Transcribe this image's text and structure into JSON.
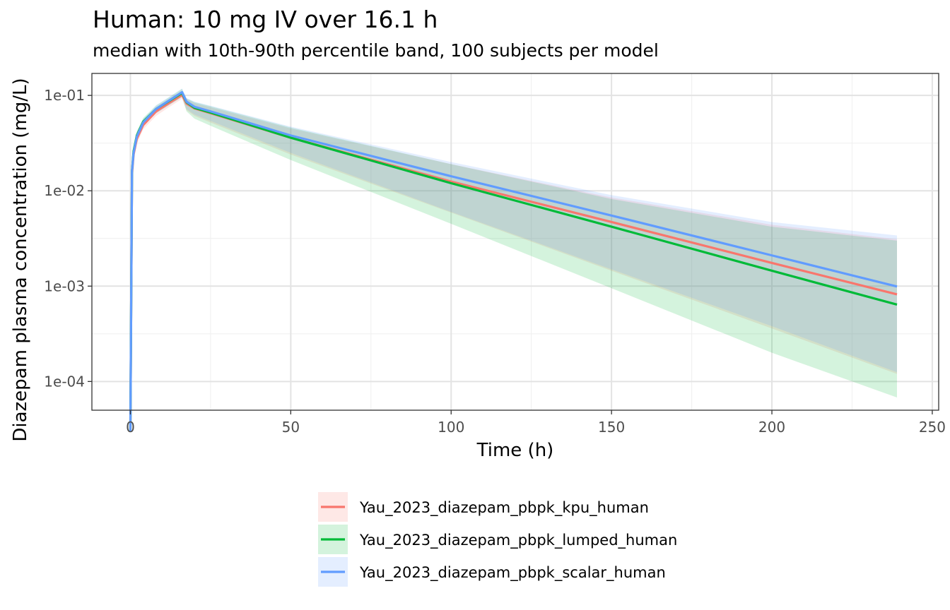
{
  "chart_data": {
    "type": "line",
    "title": "Human: 10 mg IV over 16.1 h",
    "subtitle": "median with 10th-90th percentile band, 100 subjects per model",
    "xlabel": "Time (h)",
    "ylabel": "Diazepam plasma concentration (mg/L)",
    "xlim": [
      -12,
      252
    ],
    "ylim": [
      5e-05,
      0.17
    ],
    "y_scale": "log10",
    "x_ticks": [
      0,
      50,
      100,
      150,
      200,
      250
    ],
    "x_tick_labels": [
      "0",
      "50",
      "100",
      "150",
      "200",
      "250"
    ],
    "y_ticks": [
      0.0001,
      0.001,
      0.01,
      0.1
    ],
    "y_tick_labels": [
      "1e-04",
      "1e-03",
      "1e-02",
      "1e-01"
    ],
    "grid": true,
    "legend_position": "bottom",
    "series": [
      {
        "name": "Yau_2023_diazepam_pbpk_kpu_human",
        "color": "#F8766D",
        "x": [
          0,
          0.5,
          1,
          2,
          4,
          8,
          12,
          16.1,
          17.5,
          20,
          25,
          50,
          100,
          150,
          200,
          239
        ],
        "median": [
          3e-05,
          0.015,
          0.024,
          0.035,
          0.049,
          0.068,
          0.083,
          0.101,
          0.082,
          0.073,
          0.065,
          0.036,
          0.0125,
          0.0047,
          0.00175,
          0.00082
        ],
        "p10": [
          3e-05,
          0.013,
          0.021,
          0.031,
          0.044,
          0.061,
          0.075,
          0.092,
          0.07,
          0.061,
          0.052,
          0.024,
          0.0059,
          0.00145,
          0.00036,
          0.00012
        ],
        "p90": [
          3e-05,
          0.017,
          0.027,
          0.039,
          0.054,
          0.075,
          0.092,
          0.112,
          0.092,
          0.083,
          0.075,
          0.045,
          0.019,
          0.0085,
          0.0044,
          0.0031
        ]
      },
      {
        "name": "Yau_2023_diazepam_pbpk_lumped_human",
        "color": "#00BA38",
        "x": [
          0,
          0.5,
          1,
          2,
          4,
          8,
          12,
          16.1,
          17.5,
          20,
          25,
          50,
          100,
          150,
          200,
          239
        ],
        "median": [
          3e-05,
          0.016,
          0.026,
          0.038,
          0.053,
          0.072,
          0.087,
          0.106,
          0.085,
          0.074,
          0.066,
          0.036,
          0.012,
          0.0042,
          0.00145,
          0.00064
        ],
        "p10": [
          3e-05,
          0.014,
          0.023,
          0.034,
          0.048,
          0.065,
          0.079,
          0.096,
          0.068,
          0.057,
          0.048,
          0.021,
          0.0045,
          0.00095,
          0.0002,
          6.8e-05
        ],
        "p90": [
          3e-05,
          0.018,
          0.029,
          0.042,
          0.058,
          0.078,
          0.095,
          0.117,
          0.093,
          0.085,
          0.077,
          0.046,
          0.019,
          0.0082,
          0.0042,
          0.003
        ]
      },
      {
        "name": "Yau_2023_diazepam_pbpk_scalar_human",
        "color": "#619CFF",
        "x": [
          0,
          0.5,
          1,
          2,
          4,
          8,
          12,
          16.1,
          17.5,
          20,
          25,
          50,
          100,
          150,
          200,
          239
        ],
        "median": [
          3e-05,
          0.016,
          0.025,
          0.037,
          0.052,
          0.072,
          0.088,
          0.108,
          0.086,
          0.076,
          0.068,
          0.038,
          0.0142,
          0.0055,
          0.0021,
          0.00099
        ],
        "p10": [
          3e-05,
          0.014,
          0.022,
          0.033,
          0.047,
          0.065,
          0.079,
          0.097,
          0.072,
          0.063,
          0.054,
          0.025,
          0.006,
          0.0015,
          0.00038,
          0.000125
        ],
        "p90": [
          3e-05,
          0.018,
          0.028,
          0.041,
          0.057,
          0.079,
          0.096,
          0.118,
          0.094,
          0.086,
          0.078,
          0.047,
          0.02,
          0.009,
          0.0047,
          0.0034
        ]
      }
    ]
  }
}
